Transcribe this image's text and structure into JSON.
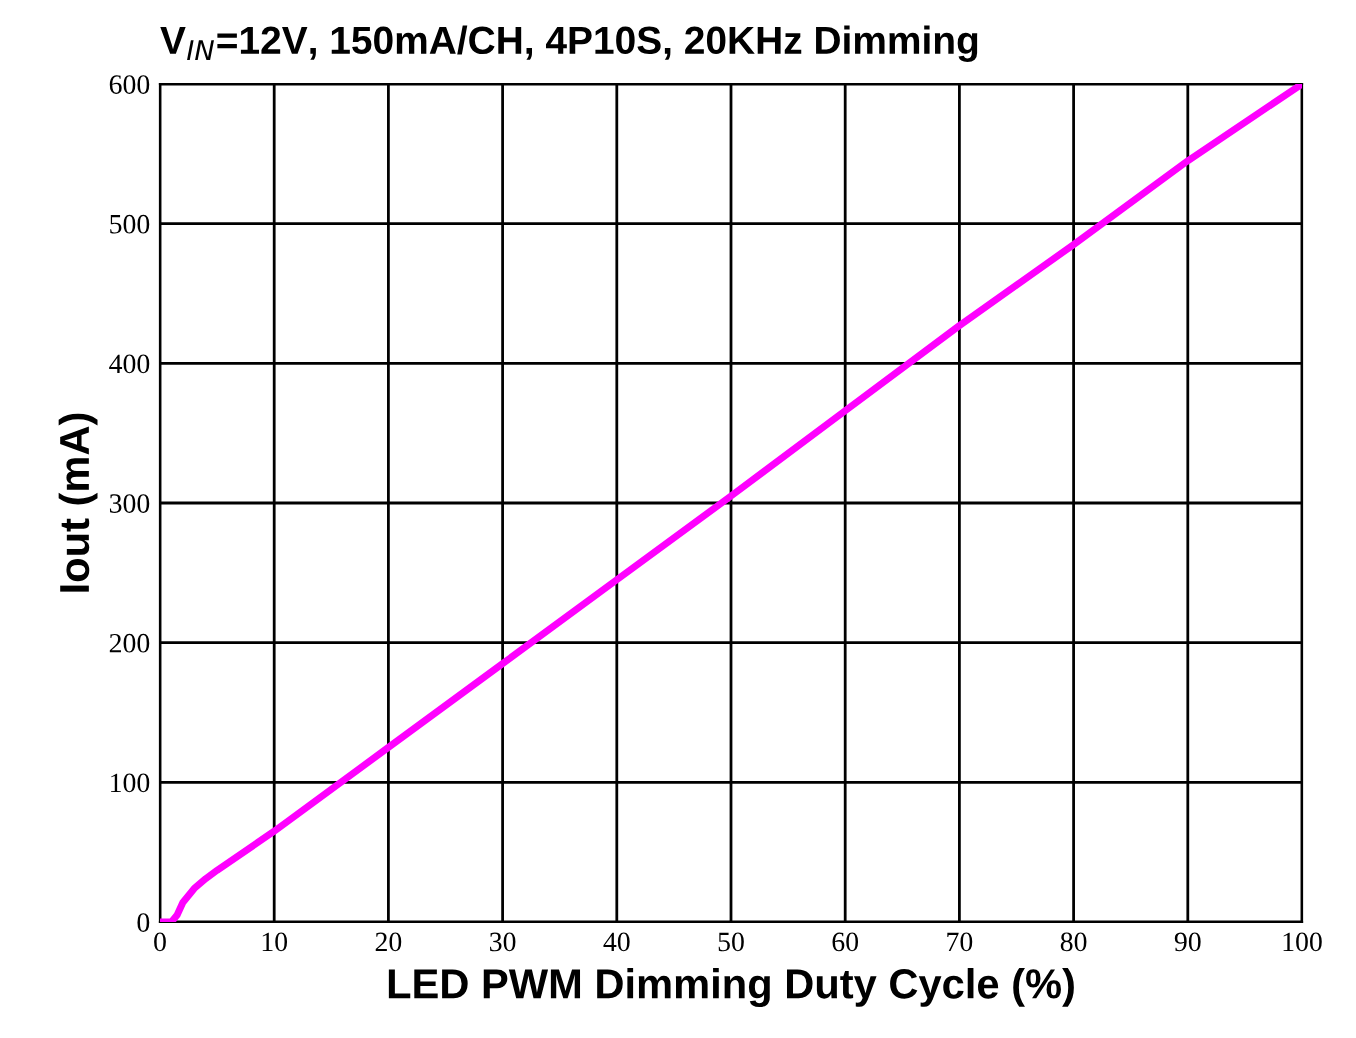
{
  "chart_data": {
    "type": "line",
    "title": "V$_{IN}$=12V, 150mA/CH, 4P10S, 20KHz Dimming",
    "xlabel": "LED PWM Dimming Duty Cycle (%)",
    "ylabel": "Iout (mA)",
    "x": [
      0,
      1,
      1.5,
      2,
      3,
      4,
      5,
      10,
      20,
      30,
      40,
      50,
      60,
      70,
      80,
      90,
      100
    ],
    "series": [
      {
        "color": "#ff00ff",
        "values": [
          0,
          0,
          5,
          14,
          24,
          31,
          37,
          65,
          125,
          185,
          245,
          305,
          366,
          427,
          485,
          545,
          600
        ]
      }
    ],
    "xlim": [
      0,
      100
    ],
    "ylim": [
      0,
      600
    ],
    "xticks": [
      0,
      10,
      20,
      30,
      40,
      50,
      60,
      70,
      80,
      90,
      100
    ],
    "yticks": [
      0,
      100,
      200,
      300,
      400,
      500,
      600
    ],
    "grid": true,
    "marker": "none",
    "line_style": "solid"
  }
}
